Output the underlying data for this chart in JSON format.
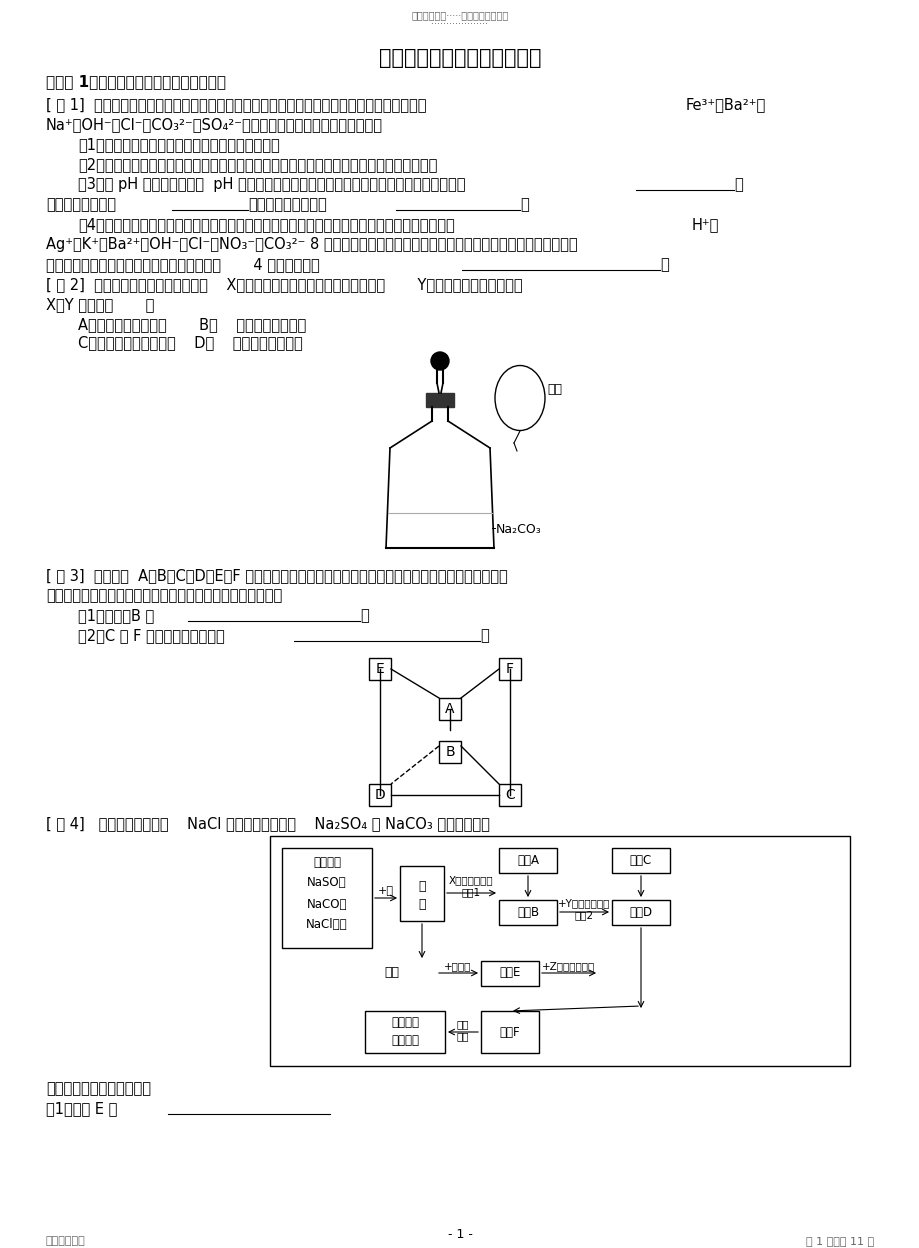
{
  "page_width": 9.2,
  "page_height": 12.48,
  "bg_color": "#ffffff",
  "header_text": "名师资料总结·····精品资料欢迎下载",
  "header_dots": "···················",
  "title": "离子检验、离子共存及推断题",
  "footer_left": "名师精心整理",
  "footer_right": "第 1 页，共 11 页",
  "page_num": "- 1 -"
}
